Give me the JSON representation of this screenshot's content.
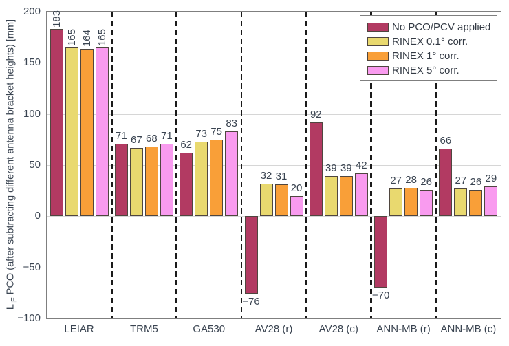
{
  "chart_data": {
    "type": "bar",
    "title": "",
    "ylabel": {
      "prefix": "L",
      "sub": "IF",
      "rest": " PCO (after subtracting different antenna bracket heights) [mm]"
    },
    "ylim": [
      -100,
      200
    ],
    "yticks": [
      -100,
      -50,
      0,
      50,
      100,
      150,
      200
    ],
    "grid": true,
    "legend_position": "top-right",
    "categories": [
      "LEIAR",
      "TRM5",
      "GA530",
      "AV28 (r)",
      "AV28 (c)",
      "ANN-MB (r)",
      "ANN-MB (c)"
    ],
    "series": [
      {
        "name": "No PCO/PCV applied",
        "color": "#b23a62",
        "values": [
          183,
          71,
          62,
          -76,
          92,
          -70,
          66
        ]
      },
      {
        "name": "RINEX 0.1° corr.",
        "color": "#e9d96f",
        "values": [
          165,
          67,
          73,
          32,
          39,
          27,
          27
        ]
      },
      {
        "name": "RINEX 1° corr.",
        "color": "#f99f38",
        "values": [
          164,
          68,
          75,
          31,
          39,
          28,
          26
        ]
      },
      {
        "name": "RINEX 5° corr.",
        "color": "#f99bef",
        "values": [
          165,
          71,
          83,
          20,
          42,
          26,
          29
        ]
      }
    ],
    "value_labels": true,
    "rotated_value_label_groups": [
      0
    ],
    "colors": {
      "grid": "#d6d6d6",
      "axis": "#7f7f7f",
      "text": "#3a4451",
      "separator": "#1a1a1a",
      "bar_edge": "#4f463f",
      "background": "#ffffff"
    }
  }
}
